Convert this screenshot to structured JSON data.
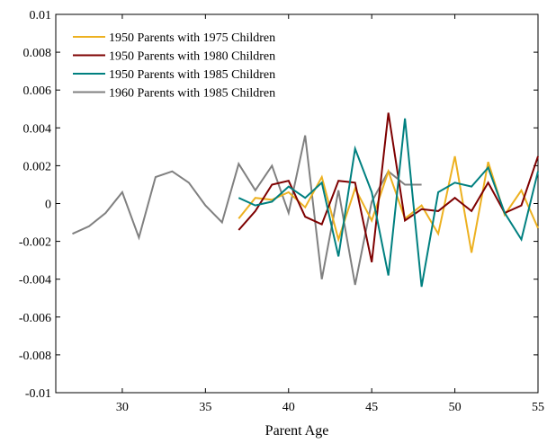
{
  "chart_data": {
    "type": "line",
    "title": "",
    "xlabel": "Parent Age",
    "ylabel": "",
    "xlim": [
      26,
      55
    ],
    "ylim": [
      -0.01,
      0.01
    ],
    "x_ticks": [
      30,
      35,
      40,
      45,
      50,
      55
    ],
    "x_tick_labels": [
      "30",
      "35",
      "40",
      "45",
      "50",
      "55"
    ],
    "y_ticks": [
      -0.01,
      -0.008,
      -0.006,
      -0.004,
      -0.002,
      0,
      0.002,
      0.004,
      0.006,
      0.008,
      0.01
    ],
    "y_tick_labels": [
      "-0.01",
      "-0.008",
      "-0.006",
      "-0.004",
      "-0.002",
      "0",
      "0.002",
      "0.004",
      "0.006",
      "0.008",
      "0.01"
    ],
    "grid": false,
    "legend_position": "top-left",
    "series": [
      {
        "name": "1950 Parents with 1975 Children",
        "color": "#EDB120",
        "x": [
          37,
          38,
          39,
          40,
          41,
          42,
          43,
          44,
          45,
          46,
          47,
          48,
          49,
          50,
          51,
          52,
          53,
          54,
          55
        ],
        "y": [
          -0.0008,
          0.0003,
          0.0002,
          0.0006,
          -0.0002,
          0.0014,
          -0.0019,
          0.0008,
          -0.0009,
          0.0017,
          -0.0008,
          -0.0001,
          -0.0016,
          0.0025,
          -0.0026,
          0.0022,
          -0.0006,
          0.0007,
          -0.0013
        ]
      },
      {
        "name": "1950 Parents with 1980 Children",
        "color": "#7E0000",
        "x": [
          37,
          38,
          39,
          40,
          41,
          42,
          43,
          44,
          45,
          46,
          47,
          48,
          49,
          50,
          51,
          52,
          53,
          54,
          55
        ],
        "y": [
          -0.0014,
          -0.0004,
          0.001,
          0.0012,
          -0.0007,
          -0.0011,
          0.0012,
          0.0011,
          -0.0031,
          0.0048,
          -0.0009,
          -0.0003,
          -0.0004,
          0.0003,
          -0.0004,
          0.0011,
          -0.0005,
          -0.0001,
          0.0025
        ]
      },
      {
        "name": "1950 Parents with 1985 Children",
        "color": "#008080",
        "x": [
          37,
          38,
          39,
          40,
          41,
          42,
          43,
          44,
          45,
          46,
          47,
          48,
          49,
          50,
          51,
          52,
          53,
          54,
          55
        ],
        "y": [
          0.0003,
          -0.0001,
          0.0001,
          0.0009,
          0.0003,
          0.0011,
          -0.0028,
          0.0029,
          0.0006,
          -0.0038,
          0.0045,
          -0.0044,
          0.0006,
          0.0011,
          0.0009,
          0.0019,
          -0.0005,
          -0.0019,
          0.0017
        ]
      },
      {
        "name": "1960 Parents with 1985 Children",
        "color": "#808080",
        "x": [
          27,
          28,
          29,
          30,
          31,
          32,
          33,
          34,
          35,
          36,
          37,
          38,
          39,
          40,
          41,
          42,
          43,
          44,
          45,
          46,
          47,
          48
        ],
        "y": [
          -0.0016,
          -0.0012,
          -0.0005,
          0.0006,
          -0.0018,
          0.0014,
          0.0017,
          0.0011,
          -0.0001,
          -0.001,
          0.0021,
          0.0007,
          0.002,
          -0.0005,
          0.0036,
          -0.004,
          0.0007,
          -0.0043,
          0.0001,
          0.0017,
          0.001,
          0.001
        ]
      }
    ]
  }
}
